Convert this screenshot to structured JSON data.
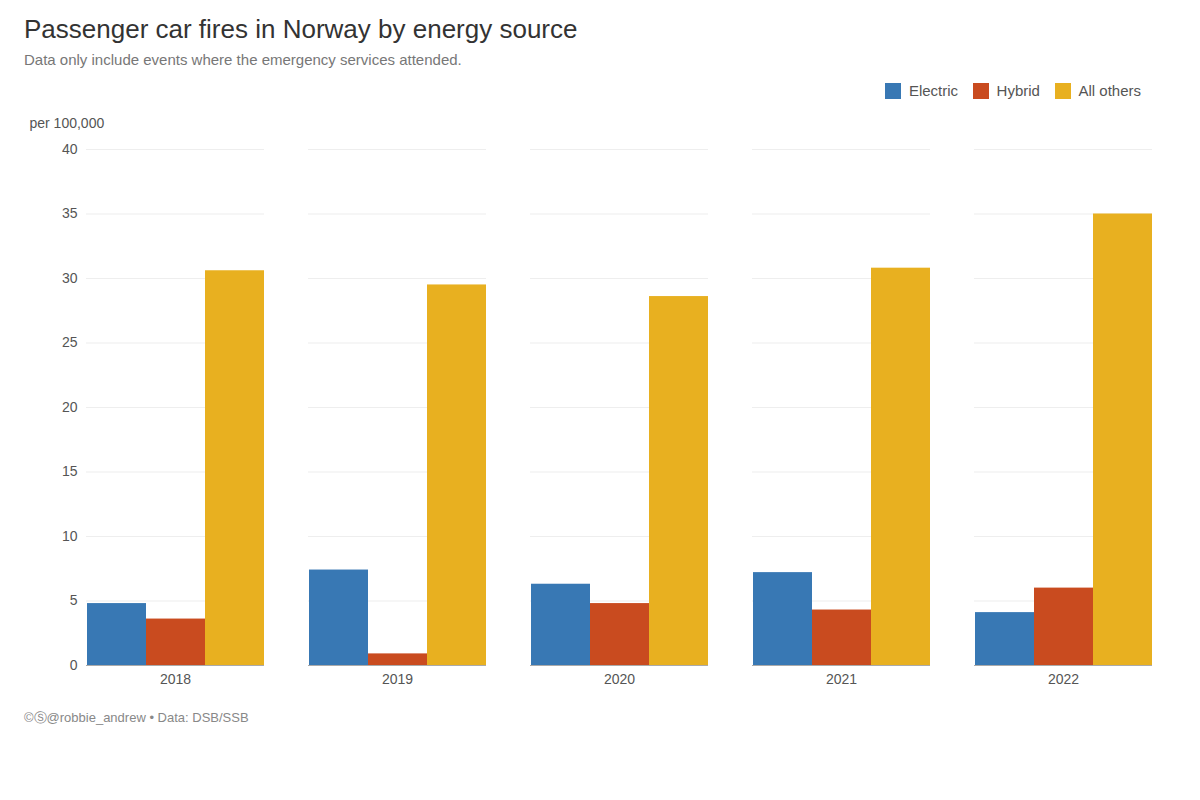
{
  "chart_data": {
    "type": "bar",
    "title": "Passenger car fires in Norway by energy source",
    "subtitle": "Data only include events where the emergency services attended.",
    "ylabel": "per 100,000",
    "caption": "©Ⓢ@robbie_andrew  •  Data: DSB/SSB",
    "categories": [
      "2018",
      "2019",
      "2020",
      "2021",
      "2022"
    ],
    "series": [
      {
        "name": "Electric",
        "color": "#3878b4",
        "values": [
          4.8,
          7.4,
          6.3,
          7.2,
          4.1
        ]
      },
      {
        "name": "Hybrid",
        "color": "#c94b1f",
        "values": [
          3.6,
          0.9,
          4.8,
          4.3,
          6.0
        ]
      },
      {
        "name": "All others",
        "color": "#e8b020",
        "values": [
          30.6,
          29.5,
          28.6,
          30.8,
          35.0
        ]
      }
    ],
    "ylim": [
      0,
      40
    ],
    "yticks": [
      0,
      5,
      10,
      15,
      20,
      25,
      30,
      35,
      40
    ],
    "grid": true,
    "legend": "upper right"
  }
}
